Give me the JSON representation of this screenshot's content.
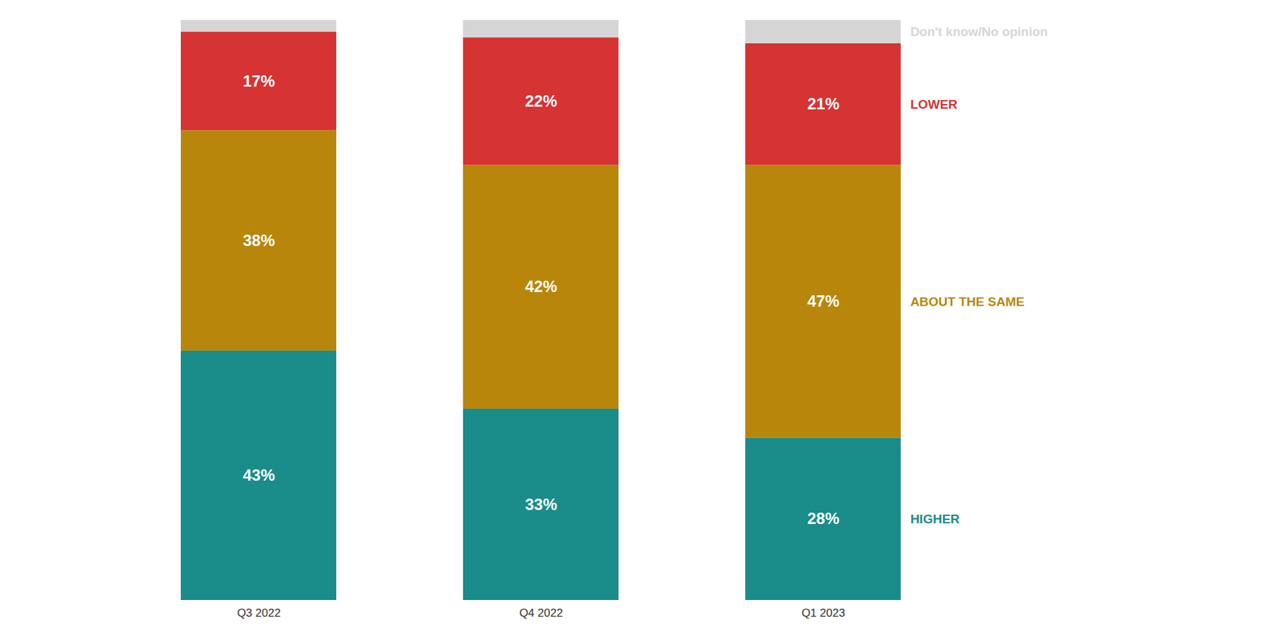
{
  "chart_data": {
    "type": "bar",
    "stacked": true,
    "categories": [
      "Q3 2022",
      "Q4 2022",
      "Q1 2023"
    ],
    "series": [
      {
        "name": "HIGHER",
        "color": "#1a8c8a",
        "values": [
          43,
          33,
          28
        ],
        "value_labels": [
          "43%",
          "33%",
          "28%"
        ]
      },
      {
        "name": "ABOUT THE SAME",
        "color": "#b8860b",
        "values": [
          38,
          42,
          47
        ],
        "value_labels": [
          "38%",
          "42%",
          "47%"
        ]
      },
      {
        "name": "LOWER",
        "color": "#d63333",
        "values": [
          17,
          22,
          21
        ],
        "value_labels": [
          "17%",
          "22%",
          "21%"
        ]
      },
      {
        "name": "Don't know/No opinion",
        "color": "#d5d5d5",
        "values": [
          2,
          3,
          4
        ]
      }
    ],
    "data_labels": true,
    "legend": "right",
    "tick_labels": "x"
  }
}
